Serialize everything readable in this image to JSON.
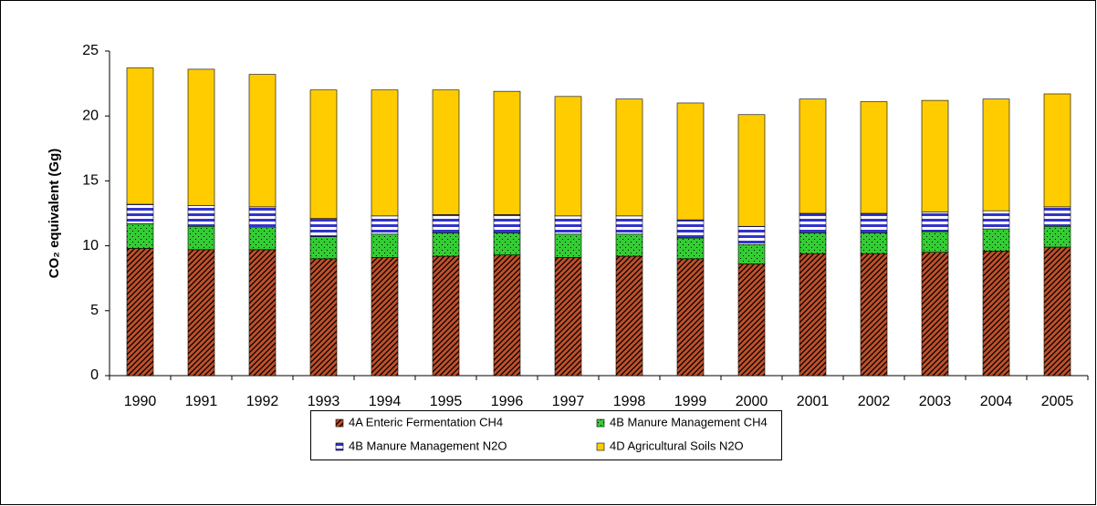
{
  "chart_data": {
    "type": "stacked_bar",
    "y_axis_label": "CO₂ equivalent (Gg)",
    "categories": [
      "1990",
      "1991",
      "1992",
      "1993",
      "1994",
      "1995",
      "1996",
      "1997",
      "1998",
      "1999",
      "2000",
      "2001",
      "2002",
      "2003",
      "2004",
      "2005"
    ],
    "series": [
      {
        "name": "4A Enteric Fermentation CH4",
        "color": "#c0502a",
        "pattern": "diagonal",
        "values": [
          9.8,
          9.7,
          9.7,
          9.0,
          9.1,
          9.2,
          9.3,
          9.1,
          9.2,
          9.0,
          8.6,
          9.4,
          9.4,
          9.5,
          9.6,
          9.9
        ]
      },
      {
        "name": "4B Manure Management CH4",
        "color": "#33cc33",
        "pattern": "dots",
        "values": [
          1.9,
          1.8,
          1.7,
          1.7,
          1.8,
          1.8,
          1.7,
          1.8,
          1.7,
          1.6,
          1.5,
          1.6,
          1.6,
          1.6,
          1.7,
          1.6
        ]
      },
      {
        "name": "4B Manure Management N2O",
        "color": "#3333cc",
        "pattern": "horizontal",
        "values": [
          1.5,
          1.6,
          1.6,
          1.4,
          1.4,
          1.4,
          1.4,
          1.4,
          1.4,
          1.4,
          1.4,
          1.5,
          1.5,
          1.5,
          1.4,
          1.5
        ]
      },
      {
        "name": "4D Agricultural Soils N2O",
        "color": "#ffcc00",
        "pattern": "solid",
        "values": [
          10.5,
          10.5,
          10.2,
          9.9,
          9.7,
          9.6,
          9.5,
          9.2,
          9.0,
          9.0,
          8.6,
          8.8,
          8.6,
          8.6,
          8.6,
          8.7
        ]
      }
    ],
    "ylim": [
      0,
      25
    ],
    "yticks": [
      0,
      5,
      10,
      15,
      20,
      25
    ],
    "grid": false,
    "legend": "bottom"
  }
}
